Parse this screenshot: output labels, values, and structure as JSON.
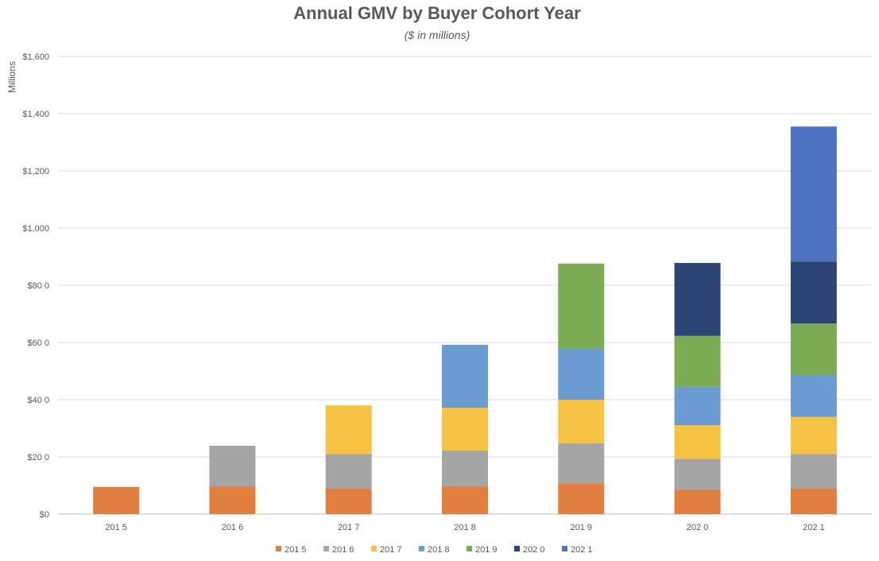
{
  "chart_data": {
    "type": "bar",
    "stacked": true,
    "title": "Annual GMV by Buyer Cohort Year",
    "subtitle": "($ in millions)",
    "ylabel": "Millions",
    "xlabel": "",
    "ylim": [
      0,
      1600
    ],
    "yticks": [
      {
        "value": 0,
        "label": "$0"
      },
      {
        "value": 200,
        "label": "$20 0"
      },
      {
        "value": 400,
        "label": "$40 0"
      },
      {
        "value": 600,
        "label": "$60 0"
      },
      {
        "value": 800,
        "label": "$80 0"
      },
      {
        "value": 1000,
        "label": "$1,000"
      },
      {
        "value": 1200,
        "label": "$1,200"
      },
      {
        "value": 1400,
        "label": "$1,400"
      },
      {
        "value": 1600,
        "label": "$1,600"
      }
    ],
    "categories": [
      "201 5",
      "201 6",
      "201 7",
      "201 8",
      "201 9",
      "202 0",
      "202 1"
    ],
    "series": [
      {
        "name": "201 5",
        "color": "#E07F40",
        "values": [
          95,
          97,
          90,
          97,
          108,
          85,
          90
        ]
      },
      {
        "name": "201 6",
        "color": "#A5A5A5",
        "values": [
          0,
          142,
          120,
          125,
          140,
          108,
          120
        ]
      },
      {
        "name": "201 7",
        "color": "#F5C242",
        "values": [
          0,
          0,
          170,
          150,
          152,
          118,
          130
        ]
      },
      {
        "name": "201 8",
        "color": "#6A9BD1",
        "values": [
          0,
          0,
          0,
          220,
          178,
          134,
          146
        ]
      },
      {
        "name": "201 9",
        "color": "#7DAA54",
        "values": [
          0,
          0,
          0,
          0,
          298,
          178,
          180
        ]
      },
      {
        "name": "202 0",
        "color": "#2D4573",
        "values": [
          0,
          0,
          0,
          0,
          0,
          255,
          217
        ]
      },
      {
        "name": "202 1",
        "color": "#4E74C1",
        "values": [
          0,
          0,
          0,
          0,
          0,
          0,
          472
        ]
      }
    ],
    "grid": true,
    "legend_position": "bottom"
  }
}
